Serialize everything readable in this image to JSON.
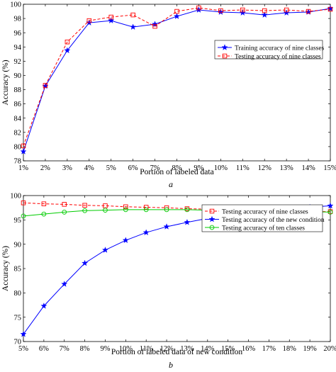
{
  "chart_data": [
    {
      "type": "line",
      "panel_label": "a",
      "xlabel": "Portion of labeled data",
      "ylabel": "Accuracy (%)",
      "categories": [
        "1%",
        "2%",
        "3%",
        "4%",
        "5%",
        "6%",
        "7%",
        "8%",
        "9%",
        "10%",
        "11%",
        "12%",
        "13%",
        "14%",
        "15%"
      ],
      "ylim": [
        78,
        100
      ],
      "yticks": [
        "78",
        "80",
        "82",
        "84",
        "86",
        "88",
        "90",
        "92",
        "94",
        "96",
        "98",
        "100"
      ],
      "grid": false,
      "legend_position": "right",
      "series": [
        {
          "name": "Training accuracy of nine classes",
          "color": "#0000ff",
          "line_style": "solid",
          "marker": "star",
          "values": [
            79.3,
            88.5,
            93.5,
            97.4,
            97.7,
            96.8,
            97.2,
            98.3,
            99.2,
            98.9,
            98.8,
            98.5,
            98.8,
            98.9,
            99.4
          ]
        },
        {
          "name": "Testing accuracy of nine classes",
          "color": "#ff0000",
          "line_style": "dashed",
          "marker": "square",
          "values": [
            80.1,
            88.6,
            94.7,
            97.7,
            98.2,
            98.5,
            96.9,
            99.0,
            99.5,
            99.1,
            99.2,
            99.1,
            99.2,
            99.0,
            99.3
          ]
        }
      ]
    },
    {
      "type": "line",
      "panel_label": "b",
      "xlabel": "Portion of labeled data of new condition",
      "ylabel": "Accuracy (%)",
      "categories": [
        "5%",
        "6%",
        "7%",
        "8%",
        "9%",
        "10%",
        "11%",
        "12%",
        "13%",
        "14%",
        "15%",
        "16%",
        "17%",
        "18%",
        "19%",
        "20%"
      ],
      "ylim": [
        70,
        100
      ],
      "yticks": [
        "70",
        "75",
        "80",
        "85",
        "90",
        "95",
        "100"
      ],
      "grid": false,
      "legend_position": "right",
      "series": [
        {
          "name": "Testing accuracy of nine classes",
          "color": "#ff0000",
          "line_style": "dashed",
          "marker": "square",
          "values": [
            98.5,
            98.3,
            98.2,
            98.0,
            97.9,
            97.7,
            97.6,
            97.5,
            97.3,
            97.2,
            97.1,
            97.0,
            96.9,
            96.8,
            96.7,
            96.7
          ]
        },
        {
          "name": "Testing accuracy of the new condition",
          "color": "#0000ff",
          "line_style": "solid",
          "marker": "star",
          "values": [
            71.5,
            77.3,
            81.8,
            86.1,
            88.8,
            90.8,
            92.4,
            93.6,
            94.5,
            95.3,
            95.7,
            96.1,
            96.5,
            97.2,
            97.6,
            97.9
          ]
        },
        {
          "name": "Testing accuracy of ten classes",
          "color": "#00cc00",
          "line_style": "solid",
          "marker": "circle",
          "values": [
            95.8,
            96.2,
            96.6,
            96.9,
            97.0,
            97.1,
            97.1,
            97.1,
            97.1,
            97.0,
            97.0,
            96.9,
            96.9,
            96.8,
            96.7,
            96.6
          ]
        }
      ]
    }
  ]
}
